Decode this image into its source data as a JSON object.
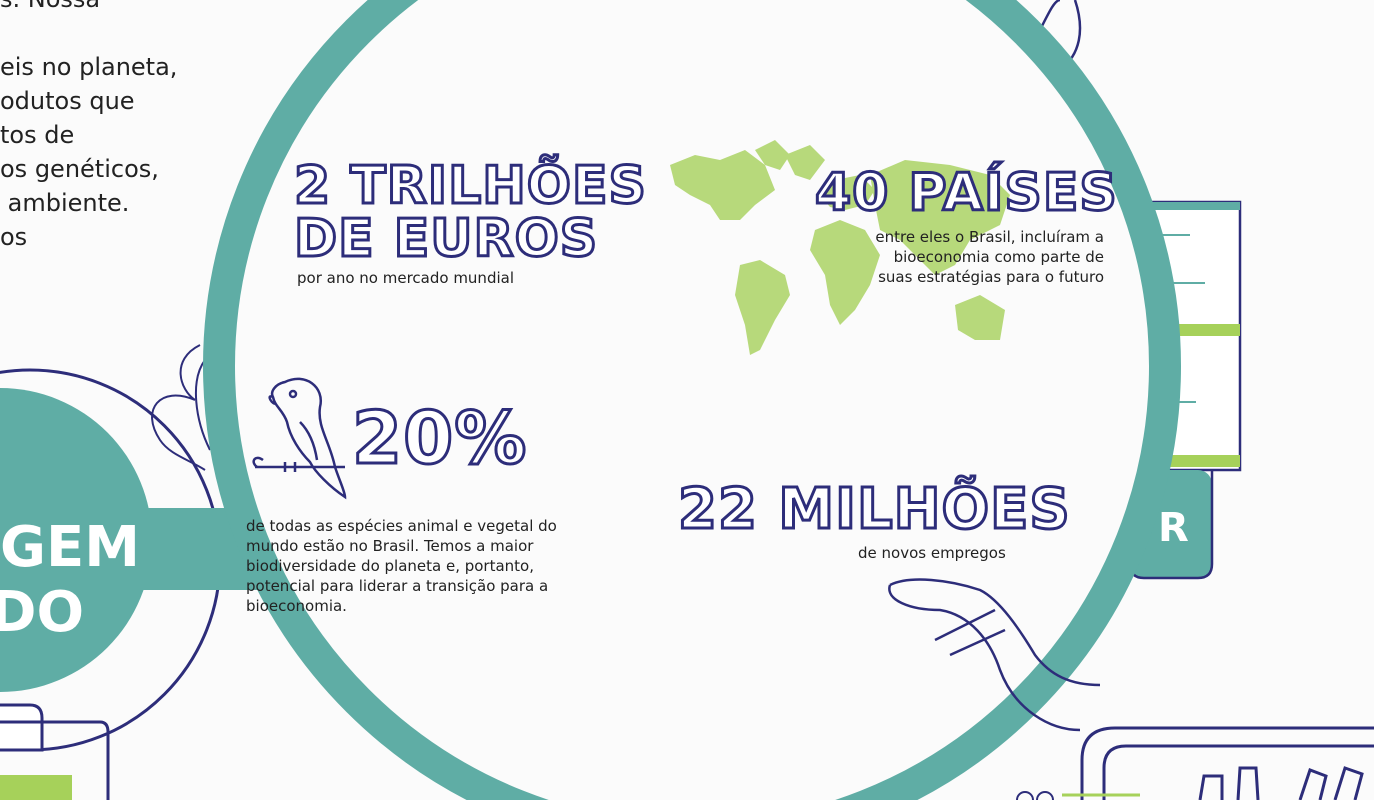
{
  "left_paragraph": "s. Nossa\n\neis no planeta,\nodutos que\ntos de\nos genéticos,\n ambiente.\nos",
  "badge": {
    "line1": "GEM",
    "line2": "DO"
  },
  "stats": {
    "euros": {
      "value_line1": "2 TRILHÕES",
      "value_line2": "DE EUROS",
      "caption": "por ano no mercado mundial"
    },
    "paises": {
      "value": "40 PAÍSES",
      "caption_lines": [
        "entre eles o Brasil, incluíram a",
        "bioeconomia como  parte de",
        "suas estratégias para o futuro"
      ]
    },
    "percent": {
      "value": "20%",
      "caption_lines": [
        "de todas as espécies animal e vegetal do",
        "mundo estão no Brasil. Temos a maior",
        "biodiversidade do planeta e, portanto,",
        "potencial para liderar a transição para a",
        "bioeconomia."
      ]
    },
    "milhoes": {
      "value": "22 MILHÕES",
      "caption": "de novos empregos"
    }
  },
  "right_button_letter": "R",
  "colors": {
    "teal": "#5fada5",
    "navy": "#2d2d7a",
    "green": "#a6d15a",
    "map_green": "#b7d97b"
  },
  "icons": [
    "parrot-icon",
    "world-map-icon",
    "arm-icon",
    "hand-icon",
    "leaf-icon"
  ]
}
